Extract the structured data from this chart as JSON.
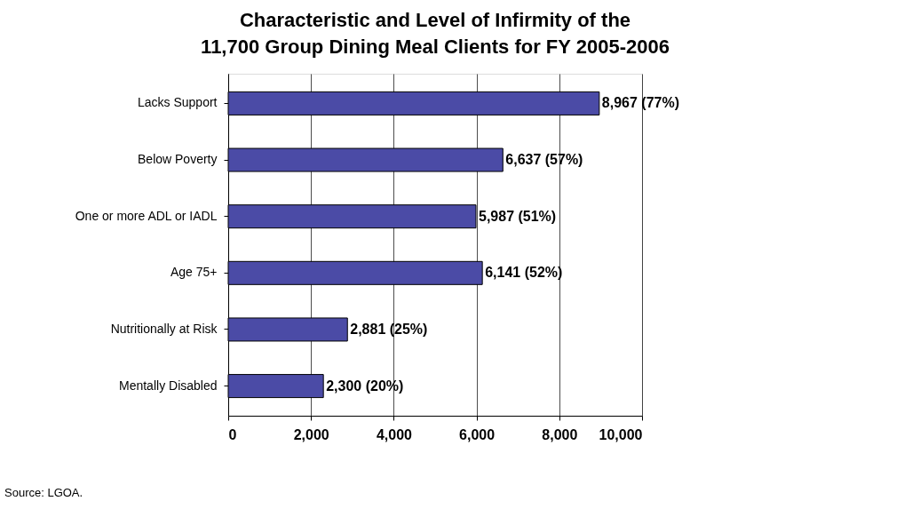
{
  "chart_data": {
    "type": "bar",
    "orientation": "horizontal",
    "title": "Characteristic and Level of Infirmity of the 11,700 Group Dining Meal Clients for FY 2005-2006",
    "categories": [
      "Lacks Support",
      "Below  Poverty",
      "One or more ADL or IADL",
      "Age 75+",
      "Nutritionally at Risk",
      "Mentally Disabled"
    ],
    "values": [
      8967,
      6637,
      5987,
      6141,
      2881,
      2300
    ],
    "value_labels": [
      "8,967 (77%)",
      "6,637 (57%)",
      "5,987 (51%)",
      "6,141 (52%)",
      "2,881 (25%)",
      "2,300 (20%)"
    ],
    "color": "#4b4ba6",
    "xlim": [
      0,
      10000
    ],
    "xticks": [
      {
        "value": 0,
        "label": "0"
      },
      {
        "value": 2000,
        "label": "2,000"
      },
      {
        "value": 4000,
        "label": "4,000"
      },
      {
        "value": 6000,
        "label": "6,000"
      },
      {
        "value": 8000,
        "label": "8,000"
      },
      {
        "value": 10000,
        "label": "10,000"
      }
    ],
    "grid": "x",
    "annotations": [
      "Source: LGOA."
    ]
  }
}
